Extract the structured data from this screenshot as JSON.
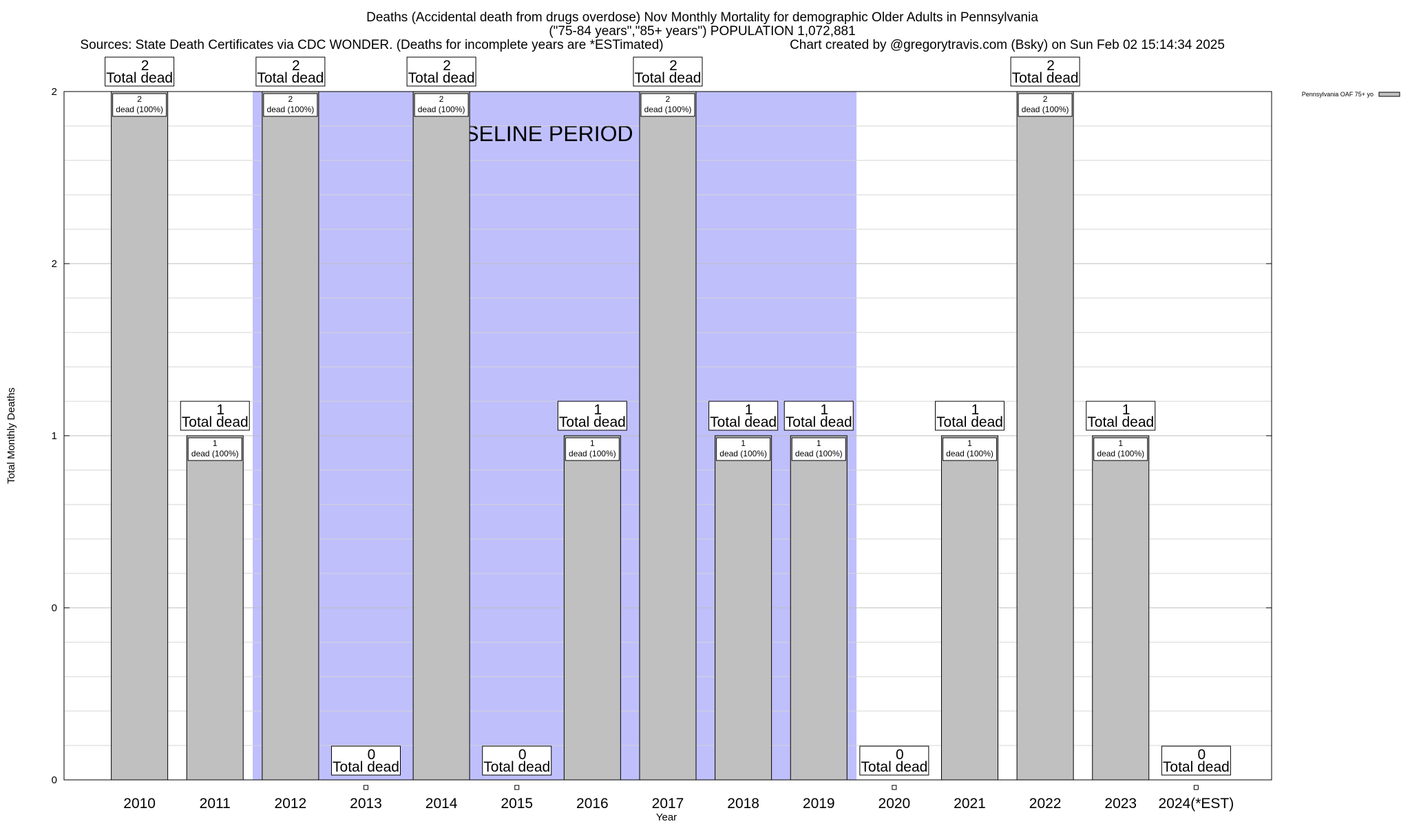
{
  "chart_data": {
    "type": "bar",
    "title": "Deaths (Accidental death from drugs overdose) Nov Monthly Mortality for demographic Older Adults in Pennsylvania",
    "subtitle": "(\"75-84 years\",\"85+ years\") POPULATION 1,072,881",
    "sources": "Sources: State Death Certificates via CDC WONDER. (Deaths for incomplete years are *ESTimated)",
    "credit": "Chart created by @gregorytravis.com (Bsky) on Sun Feb 02 15:14:34 2025",
    "xlabel": "Year",
    "ylabel": "Total Monthly Deaths",
    "yticks": [
      "0",
      "0",
      "1",
      "2",
      "2"
    ],
    "ylim": [
      0,
      2
    ],
    "categories": [
      "2010",
      "2011",
      "2012",
      "2013",
      "2014",
      "2015",
      "2016",
      "2017",
      "2018",
      "2019",
      "2020",
      "2021",
      "2022",
      "2023",
      "2024(*EST)"
    ],
    "series": [
      {
        "name": "Pennsylvania OAF 75+ yo",
        "values": [
          2,
          1,
          2,
          0,
          2,
          0,
          1,
          2,
          1,
          1,
          0,
          1,
          2,
          1,
          0
        ],
        "color": "#c0c0c0"
      }
    ],
    "total_labels": [
      "2",
      "1",
      "2",
      "0",
      "2",
      "0",
      "1",
      "2",
      "1",
      "1",
      "0",
      "1",
      "2",
      "1",
      "0"
    ],
    "total_suffix": "Total dead",
    "segment_labels": [
      "2",
      "1",
      "2",
      "",
      "2",
      "",
      "1",
      "2",
      "1",
      "1",
      "",
      "1",
      "2",
      "1",
      ""
    ],
    "segment_suffix": "dead (100%)",
    "baseline": {
      "label": "BASELINE PERIOD",
      "start": "2012",
      "end": "2019",
      "color": "#bfbffc"
    },
    "grid": true,
    "legend_position": "top-right"
  }
}
